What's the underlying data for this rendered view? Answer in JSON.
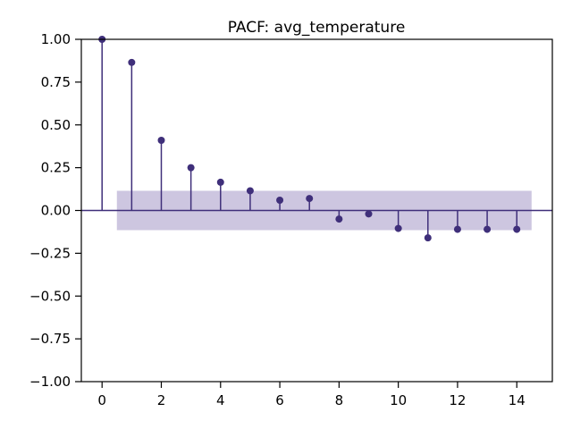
{
  "chart_data": {
    "type": "stem",
    "title": "PACF: avg_temperature",
    "xlabel": "",
    "ylabel": "",
    "xlim": [
      -0.7,
      15.2
    ],
    "ylim": [
      -1.0,
      1.0
    ],
    "xticks": [
      0,
      2,
      4,
      6,
      8,
      10,
      12,
      14
    ],
    "xtick_labels": [
      "0",
      "2",
      "4",
      "6",
      "8",
      "10",
      "12",
      "14"
    ],
    "yticks": [
      1.0,
      0.75,
      0.5,
      0.25,
      0.0,
      -0.25,
      -0.5,
      -0.75,
      -1.0
    ],
    "ytick_labels": [
      "1.00",
      "0.75",
      "0.50",
      "0.25",
      "0.00",
      "−0.25",
      "−0.50",
      "−0.75",
      "−1.00"
    ],
    "lags": [
      0,
      1,
      2,
      3,
      4,
      5,
      6,
      7,
      8,
      9,
      10,
      11,
      12,
      13,
      14
    ],
    "values": [
      1.0,
      0.865,
      0.41,
      0.25,
      0.165,
      0.115,
      0.06,
      0.07,
      -0.05,
      -0.02,
      -0.105,
      -0.16,
      -0.11,
      -0.11,
      -0.11
    ],
    "confidence_band": {
      "lower": -0.115,
      "upper": 0.115,
      "x_start": 0.5,
      "x_end": 14.5
    },
    "grid": false,
    "colors": {
      "stem": "#3f2f7a",
      "band": "#cdc6e0",
      "axis": "#000000"
    }
  }
}
